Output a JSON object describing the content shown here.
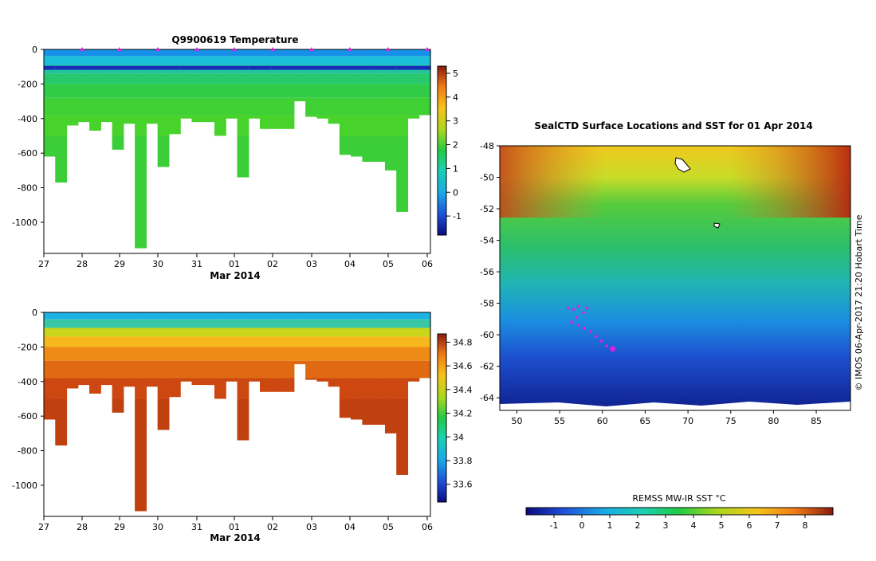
{
  "chart_data": [
    {
      "type": "heatmap",
      "title": "Q9900619  Temperature",
      "xlabel": "Mar 2014",
      "ylabel": "",
      "x_ticks": [
        "27",
        "28",
        "29",
        "30",
        "31",
        "01",
        "02",
        "03",
        "04",
        "05",
        "06"
      ],
      "y_ticks": [
        0,
        -200,
        -400,
        -600,
        -800,
        -1000
      ],
      "ylim": [
        -1180,
        0
      ],
      "colorbar": {
        "ticks": [
          5,
          4,
          3,
          2,
          1,
          0,
          -1
        ],
        "range": [
          -1.8,
          5.3
        ]
      },
      "profile_depths": [
        -620,
        -770,
        -440,
        -420,
        -470,
        -420,
        -580,
        -430,
        -1150,
        -430,
        -680,
        -490,
        -400,
        -420,
        -420,
        -500,
        -400,
        -740,
        -400,
        -460,
        -460,
        -460,
        -300,
        -390,
        -400,
        -430,
        -610,
        -620,
        -650,
        -650,
        -700,
        -940,
        -400,
        -380
      ]
    },
    {
      "type": "heatmap",
      "title": "",
      "xlabel": "Mar 2014",
      "ylabel": "",
      "x_ticks": [
        "27",
        "28",
        "29",
        "30",
        "31",
        "01",
        "02",
        "03",
        "04",
        "05",
        "06"
      ],
      "y_ticks": [
        0,
        -200,
        -400,
        -600,
        -800,
        -1000
      ],
      "ylim": [
        -1180,
        0
      ],
      "colorbar": {
        "ticks": [
          34.8,
          34.6,
          34.4,
          34.2,
          34,
          33.8,
          33.6
        ],
        "range": [
          33.45,
          34.87
        ]
      },
      "profile_depths": [
        -620,
        -770,
        -440,
        -420,
        -470,
        -420,
        -580,
        -430,
        -1150,
        -430,
        -680,
        -490,
        -400,
        -420,
        -420,
        -500,
        -400,
        -740,
        -400,
        -460,
        -460,
        -460,
        -300,
        -390,
        -400,
        -430,
        -610,
        -620,
        -650,
        -650,
        -700,
        -940,
        -400,
        -380
      ]
    },
    {
      "type": "heatmap",
      "title": "SealCTD Surface Locations and SST for 01 Apr 2014",
      "x_ticks": [
        50,
        55,
        60,
        65,
        70,
        75,
        80,
        85
      ],
      "y_ticks": [
        -48,
        -50,
        -52,
        -54,
        -56,
        -58,
        -60,
        -62,
        -64
      ],
      "xlim": [
        48,
        89
      ],
      "ylim": [
        -64.8,
        -48
      ],
      "colorbar_label": "REMSS MW-IR SST °C",
      "colorbar_ticks": [
        -1,
        0,
        1,
        2,
        3,
        4,
        5,
        6,
        7,
        8
      ],
      "colorbar_range": [
        -2,
        9
      ],
      "credit": "© IMOS 06-Apr-2017 21:20 Hobart Time"
    }
  ]
}
